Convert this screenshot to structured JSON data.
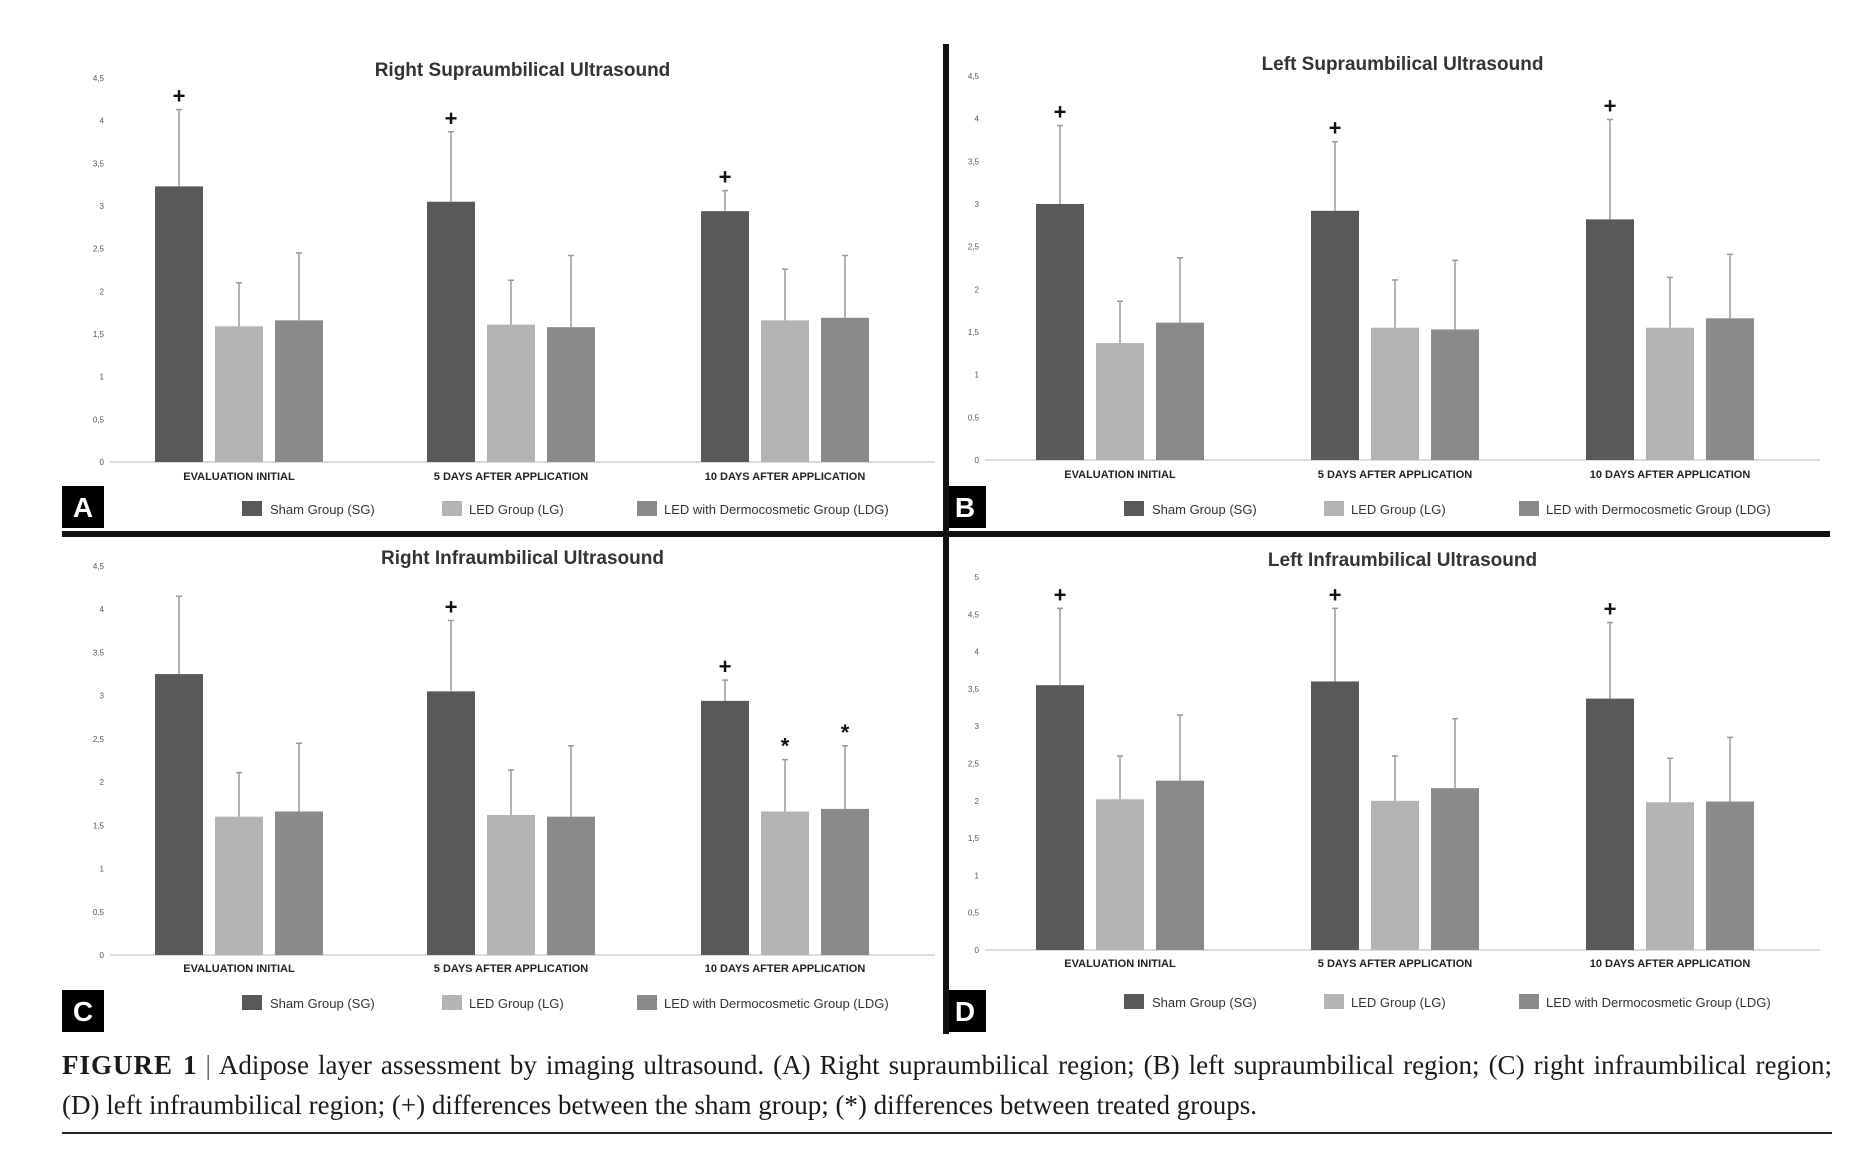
{
  "chart_data": [
    {
      "type": "bar",
      "panel_letter": "A",
      "title": "Right Supraumbilical Ultrasound",
      "categories": [
        "EVALUATION INITIAL",
        "5 DAYS AFTER APPLICATION",
        "10 DAYS AFTER APPLICATION"
      ],
      "series": [
        {
          "name": "Sham Group (SG)",
          "values": [
            3.23,
            3.05,
            2.94
          ],
          "errors": [
            0.9,
            0.82,
            0.24
          ]
        },
        {
          "name": "LED Group (LG)",
          "values": [
            1.59,
            1.61,
            1.66
          ],
          "errors": [
            0.51,
            0.52,
            0.6
          ]
        },
        {
          "name": "LED with Dermocosmetic Group (LDG)",
          "values": [
            1.66,
            1.58,
            1.69
          ],
          "errors": [
            0.79,
            0.84,
            0.73
          ]
        }
      ],
      "markers": [
        {
          "category": 0,
          "series": 0,
          "symbol": "+"
        },
        {
          "category": 1,
          "series": 0,
          "symbol": "+"
        },
        {
          "category": 2,
          "series": 0,
          "symbol": "+"
        }
      ],
      "ylim": [
        0,
        4.5
      ],
      "yticks": [
        "0",
        "0,5",
        "1",
        "1,5",
        "2",
        "2,5",
        "3",
        "3,5",
        "4",
        "4,5"
      ],
      "legend": "bottom"
    },
    {
      "type": "bar",
      "panel_letter": "B",
      "title": "Left Supraumbilical Ultrasound",
      "categories": [
        "EVALUATION INITIAL",
        "5 DAYS AFTER APPLICATION",
        "10 DAYS AFTER APPLICATION"
      ],
      "series": [
        {
          "name": "Sham Group (SG)",
          "values": [
            3.0,
            2.92,
            2.82
          ],
          "errors": [
            0.92,
            0.81,
            1.17
          ]
        },
        {
          "name": "LED Group (LG)",
          "values": [
            1.37,
            1.55,
            1.55
          ],
          "errors": [
            0.49,
            0.56,
            0.59
          ]
        },
        {
          "name": "LED with Dermocosmetic Group (LDG)",
          "values": [
            1.61,
            1.53,
            1.66
          ],
          "errors": [
            0.76,
            0.81,
            0.75
          ]
        }
      ],
      "markers": [
        {
          "category": 0,
          "series": 0,
          "symbol": "+"
        },
        {
          "category": 1,
          "series": 0,
          "symbol": "+"
        },
        {
          "category": 2,
          "series": 0,
          "symbol": "+"
        }
      ],
      "ylim": [
        0,
        4.5
      ],
      "yticks": [
        "0",
        "0,5",
        "1",
        "1,5",
        "2",
        "2,5",
        "3",
        "3,5",
        "4",
        "4,5"
      ],
      "legend": "bottom"
    },
    {
      "type": "bar",
      "panel_letter": "C",
      "title": "Right Infraumbilical Ultrasound",
      "categories": [
        "EVALUATION INITIAL",
        "5 DAYS AFTER APPLICATION",
        "10 DAYS AFTER APPLICATION"
      ],
      "series": [
        {
          "name": "Sham Group (SG)",
          "values": [
            3.25,
            3.05,
            2.94
          ],
          "errors": [
            0.9,
            0.82,
            0.24
          ]
        },
        {
          "name": "LED Group (LG)",
          "values": [
            1.6,
            1.62,
            1.66
          ],
          "errors": [
            0.51,
            0.52,
            0.6
          ]
        },
        {
          "name": "LED with Dermocosmetic Group (LDG)",
          "values": [
            1.66,
            1.6,
            1.69
          ],
          "errors": [
            0.79,
            0.82,
            0.73
          ]
        }
      ],
      "markers": [
        {
          "category": 1,
          "series": 0,
          "symbol": "+"
        },
        {
          "category": 2,
          "series": 0,
          "symbol": "+"
        },
        {
          "category": 2,
          "series": 1,
          "symbol": "*"
        },
        {
          "category": 2,
          "series": 2,
          "symbol": "*"
        }
      ],
      "ylim": [
        0,
        4.5
      ],
      "yticks": [
        "0",
        "0,5",
        "1",
        "1,5",
        "2",
        "2,5",
        "3",
        "3,5",
        "4",
        "4,5"
      ],
      "legend": "bottom"
    },
    {
      "type": "bar",
      "panel_letter": "D",
      "title": "Left Infraumbilical Ultrasound",
      "categories": [
        "EVALUATION INITIAL",
        "5 DAYS AFTER APPLICATION",
        "10 DAYS AFTER APPLICATION"
      ],
      "series": [
        {
          "name": "Sham Group (SG)",
          "values": [
            3.55,
            3.6,
            3.37
          ],
          "errors": [
            1.03,
            0.98,
            1.02
          ]
        },
        {
          "name": "LED Group (LG)",
          "values": [
            2.02,
            2.0,
            1.98
          ],
          "errors": [
            0.58,
            0.6,
            0.59
          ]
        },
        {
          "name": "LED with Dermocosmetic Group (LDG)",
          "values": [
            2.27,
            2.17,
            1.99
          ],
          "errors": [
            0.88,
            0.93,
            0.86
          ]
        }
      ],
      "markers": [
        {
          "category": 0,
          "series": 0,
          "symbol": "+"
        },
        {
          "category": 1,
          "series": 0,
          "symbol": "+"
        },
        {
          "category": 2,
          "series": 0,
          "symbol": "+"
        }
      ],
      "ylim": [
        0,
        5
      ],
      "yticks": [
        "0",
        "0,5",
        "1",
        "1,5",
        "2",
        "2,5",
        "3",
        "3,5",
        "4",
        "4,5",
        "5"
      ],
      "legend": "bottom"
    }
  ],
  "colors": {
    "sham": "#595959",
    "led": "#b3b3b3",
    "ldg": "#8a8a8a",
    "error_bar": "#9a9a9a",
    "divider": "#111111"
  },
  "caption": {
    "label": "FIGURE 1",
    "separator": "|",
    "text": "Adipose layer assessment by imaging ultrasound. (A) Right supraumbilical region; (B) left supraumbilical region; (C) right infraumbilical region; (D) left infraumbilical region; (+) differences between the sham group; (*) differences between treated groups."
  }
}
